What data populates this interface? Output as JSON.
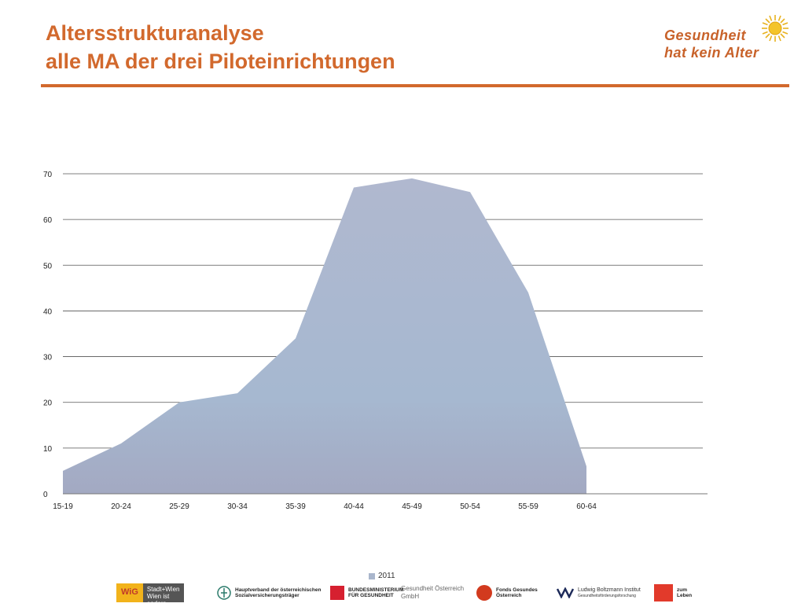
{
  "header": {
    "title_line1": "Altersstrukturanalyse",
    "title_line2": "alle MA der drei Piloteinrichtungen",
    "brand_line1": "Gesundheit",
    "brand_line2": "hat kein Alter"
  },
  "colors": {
    "accent": "#d2692d",
    "area_fill": "#a9b6cc",
    "grid": "#555555"
  },
  "chart_data": {
    "type": "area",
    "categories": [
      "15-19",
      "20-24",
      "25-29",
      "30-34",
      "35-39",
      "40-44",
      "45-49",
      "50-54",
      "55-59",
      "60-64"
    ],
    "series": [
      {
        "name": "2011",
        "values": [
          5,
          11,
          20,
          22,
          34,
          67,
          69,
          66,
          44,
          6
        ]
      }
    ],
    "ylim": [
      0,
      70
    ],
    "yticks": [
      "0",
      "10",
      "20",
      "30",
      "40",
      "50",
      "60",
      "70"
    ],
    "grid": true,
    "legend": "bottom",
    "title": "",
    "xlabel": "",
    "ylabel": ""
  },
  "footer": {
    "logos": {
      "wig": "WiG",
      "stadt_wien_line1": "Stadt+Wien",
      "stadt_wien_line2": "Wien ist anders",
      "hauptverband_line1": "Hauptverband der österreichischen",
      "hauptverband_line2": "Sozialversicherungsträger",
      "bmg_line1": "BUNDESMINISTERIUM",
      "bmg_line2": "FÜR GESUNDHEIT",
      "goeg_line1": "Gesundheit Österreich",
      "goeg_line2": "GmbH",
      "fgoe_line1": "Fonds Gesundes",
      "fgoe_line2": "Österreich",
      "lbi_line1": "Ludwig Boltzmann Institut",
      "lbi_line2": "Gesundheitsförderungsforschung",
      "zumleben_line1": "zum",
      "zumleben_line2": "Leben"
    }
  }
}
